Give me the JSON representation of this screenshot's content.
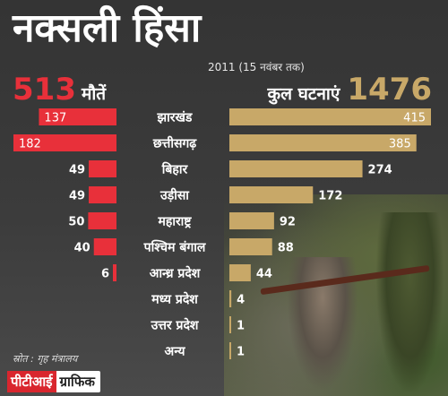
{
  "title": "नक्सली हिंसा",
  "subtitle": "2011 (15 नवंबर तक)",
  "deaths_header": {
    "value": "513",
    "label": "मौतें"
  },
  "incidents_header": {
    "label": "कुल घटनाएं",
    "value": "1476"
  },
  "source": "स्रोत : गृह मंत्रालय",
  "credit": {
    "agency": "पीटीआई",
    "suffix": "ग्राफिक"
  },
  "colors": {
    "deaths": "#e8303a",
    "incidents": "#c8a868",
    "background": "#3a3a3a"
  },
  "chart_data": {
    "type": "bar",
    "categories": [
      "झारखंड",
      "छत्तीसगढ़",
      "बिहार",
      "उड़ीसा",
      "महाराष्ट्र",
      "पश्चिम बंगाल",
      "आन्ध्र प्रदेश",
      "मध्य प्रदेश",
      "उत्तर प्रदेश",
      "अन्य"
    ],
    "series": [
      {
        "name": "मौतें",
        "values": [
          137,
          182,
          49,
          49,
          50,
          40,
          6,
          null,
          null,
          null
        ]
      },
      {
        "name": "कुल घटनाएं",
        "values": [
          415,
          385,
          274,
          172,
          92,
          88,
          44,
          4,
          1,
          1
        ]
      }
    ]
  }
}
